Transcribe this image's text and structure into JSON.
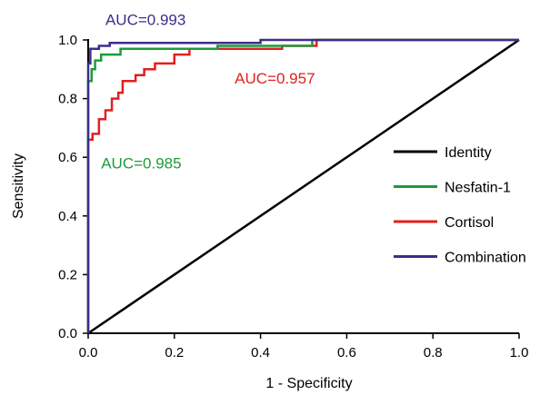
{
  "chart_data": {
    "type": "line",
    "xlabel": "1 - Specificity",
    "ylabel": "Sensitivity",
    "xlim": [
      0.0,
      1.0
    ],
    "ylim": [
      0.0,
      1.0
    ],
    "x_ticks": [
      "0.0",
      "0.2",
      "0.4",
      "0.6",
      "0.8",
      "1.0"
    ],
    "y_ticks": [
      "0.0",
      "0.2",
      "0.4",
      "0.6",
      "0.8",
      "1.0"
    ],
    "grid": false,
    "legend_position": "right",
    "series": [
      {
        "name": "Identity",
        "color": "#000000",
        "points": [
          [
            0.0,
            0.0
          ],
          [
            1.0,
            1.0
          ]
        ]
      },
      {
        "name": "Nesfatin-1",
        "color": "#1e9b3c",
        "points": [
          [
            0.0,
            0.0
          ],
          [
            0.0,
            0.08
          ],
          [
            0.0,
            0.86
          ],
          [
            0.008,
            0.86
          ],
          [
            0.008,
            0.9
          ],
          [
            0.016,
            0.9
          ],
          [
            0.016,
            0.93
          ],
          [
            0.03,
            0.93
          ],
          [
            0.03,
            0.95
          ],
          [
            0.075,
            0.95
          ],
          [
            0.075,
            0.97
          ],
          [
            0.3,
            0.97
          ],
          [
            0.3,
            0.98
          ],
          [
            0.52,
            0.98
          ],
          [
            0.52,
            1.0
          ],
          [
            1.0,
            1.0
          ]
        ]
      },
      {
        "name": "Cortisol",
        "color": "#e02020",
        "points": [
          [
            0.0,
            0.0
          ],
          [
            0.0,
            0.66
          ],
          [
            0.01,
            0.66
          ],
          [
            0.01,
            0.68
          ],
          [
            0.025,
            0.68
          ],
          [
            0.025,
            0.73
          ],
          [
            0.04,
            0.73
          ],
          [
            0.04,
            0.76
          ],
          [
            0.055,
            0.76
          ],
          [
            0.055,
            0.8
          ],
          [
            0.07,
            0.8
          ],
          [
            0.07,
            0.82
          ],
          [
            0.08,
            0.82
          ],
          [
            0.08,
            0.86
          ],
          [
            0.11,
            0.86
          ],
          [
            0.11,
            0.88
          ],
          [
            0.13,
            0.88
          ],
          [
            0.13,
            0.9
          ],
          [
            0.155,
            0.9
          ],
          [
            0.155,
            0.92
          ],
          [
            0.2,
            0.92
          ],
          [
            0.2,
            0.95
          ],
          [
            0.235,
            0.95
          ],
          [
            0.235,
            0.97
          ],
          [
            0.45,
            0.97
          ],
          [
            0.45,
            0.98
          ],
          [
            0.53,
            0.98
          ],
          [
            0.53,
            1.0
          ],
          [
            1.0,
            1.0
          ]
        ]
      },
      {
        "name": "Combination",
        "color": "#3b2e8a",
        "points": [
          [
            0.0,
            0.0
          ],
          [
            0.0,
            0.92
          ],
          [
            0.005,
            0.92
          ],
          [
            0.005,
            0.97
          ],
          [
            0.025,
            0.97
          ],
          [
            0.025,
            0.98
          ],
          [
            0.05,
            0.98
          ],
          [
            0.05,
            0.99
          ],
          [
            0.4,
            0.99
          ],
          [
            0.4,
            1.0
          ],
          [
            1.0,
            1.0
          ]
        ]
      }
    ],
    "legend_order": [
      "Identity",
      "Nesfatin-1",
      "Cortisol",
      "Combination"
    ],
    "annotations": [
      {
        "text": "AUC=0.993",
        "color": "#3b2e8a",
        "series": "Combination",
        "x": 0.04,
        "y": 1.07
      },
      {
        "text": "AUC=0.957",
        "color": "#e02020",
        "series": "Cortisol",
        "x": 0.34,
        "y": 0.87
      },
      {
        "text": "AUC=0.985",
        "color": "#1e9b3c",
        "series": "Nesfatin-1",
        "x": 0.03,
        "y": 0.58
      }
    ]
  }
}
